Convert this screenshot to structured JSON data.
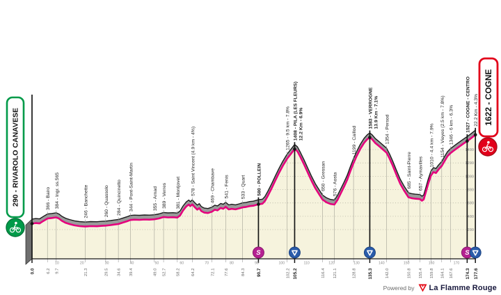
{
  "stage": {
    "start_label": "290 - RIVAROLO CANAVESE",
    "finish_label": "1622 - COGNE",
    "footer": {
      "powered_by": "Powered by",
      "brand_prefix": "La Flamme",
      "brand_suffix": "Rouge"
    }
  },
  "colors": {
    "background": "#ffffff",
    "chart_fill": "#f6f3dd",
    "mountain_band": "#9b9b9b",
    "mountain_edge": "#1a1a1a",
    "route_line": "#e5007d",
    "grid_dots": "#b3b2a2",
    "start_accent": "#009a49",
    "finish_accent": "#e2001a",
    "sprint_icon_bg": "#b52191",
    "kom_icon_bg": "#2a5caa",
    "axis_text": "#8a8a8a",
    "label_text": "#222222"
  },
  "chart_data": {
    "type": "area",
    "title": "",
    "xlabel": "",
    "ylabel": "",
    "x_range_km": [
      0,
      177.6
    ],
    "x_axis_ticks": [
      10,
      20,
      30,
      40,
      50,
      60,
      70,
      80,
      90,
      100,
      110,
      120,
      130,
      140,
      150,
      160,
      170
    ],
    "y_axis_ticks_m": [
      200,
      400,
      600,
      800,
      1000,
      1200,
      1400
    ],
    "grid": "dotted-horizontal",
    "waypoints": [
      {
        "km": 0.0,
        "km_label": "0.0",
        "elev": 290,
        "lines": [],
        "bold": true,
        "dot": true
      },
      {
        "km": 6.2,
        "km_label": "6.2",
        "elev": 366,
        "lines": [
          "366 - Bairo"
        ]
      },
      {
        "km": 9.7,
        "km_label": "9.7",
        "elev": 384,
        "lines": [
          "384 - Ingr. ss.565"
        ]
      },
      {
        "km": 21.3,
        "km_label": "21.3",
        "elev": 246,
        "lines": [
          "246 - Banchette"
        ]
      },
      {
        "km": 29.5,
        "km_label": "29.5",
        "elev": 260,
        "lines": [
          "260 - Quassolo"
        ]
      },
      {
        "km": 34.6,
        "km_label": "34.6",
        "elev": 284,
        "lines": [
          "284 - Quincinetto"
        ]
      },
      {
        "km": 39.4,
        "km_label": "39.4",
        "elev": 344,
        "lines": [
          "344 - Pont-Saint-Martin"
        ]
      },
      {
        "km": 49.0,
        "km_label": "49.0",
        "elev": 355,
        "lines": [
          "355 - Arnad"
        ]
      },
      {
        "km": 52.7,
        "km_label": "52.7",
        "elev": 389,
        "lines": [
          "389 - Verres"
        ]
      },
      {
        "km": 58.2,
        "km_label": "58.2",
        "elev": 381,
        "lines": [
          "381 - Montjovet"
        ]
      },
      {
        "km": 64.2,
        "km_label": "64.2",
        "elev": 578,
        "lines": [
          "578 - Saint Vincent (4.9 km - 4%)"
        ]
      },
      {
        "km": 72.1,
        "km_label": "72.1",
        "elev": 469,
        "lines": [
          "469 - Chambave"
        ]
      },
      {
        "km": 77.6,
        "km_label": "77.6",
        "elev": 541,
        "lines": [
          "541 - Fenis"
        ]
      },
      {
        "km": 84.3,
        "km_label": "84.3",
        "elev": 533,
        "lines": [
          "533 - Quart"
        ]
      },
      {
        "km": 90.7,
        "km_label": "90.7",
        "elev": 580,
        "lines": [
          "580 - POLLEIN"
        ],
        "bold": true,
        "lines_bold": true,
        "icon": "sprint",
        "dot": true
      },
      {
        "km": 102.2,
        "km_label": "102.2",
        "elev": 1265,
        "lines": [
          "1265 - 9.5 km - 7.8%"
        ]
      },
      {
        "km": 105.2,
        "km_label": "105.2",
        "elev": 1408,
        "lines": [
          "1408 - PILA (LES FLEURS)",
          "12.2 Km - 6.9%"
        ],
        "bold": true,
        "lines_bold": true,
        "icon": "kom",
        "dot": true
      },
      {
        "km": 116.4,
        "km_label": "116.4",
        "elev": 650,
        "lines": [
          "650 - Gressan"
        ]
      },
      {
        "km": 121.1,
        "km_label": "121.1",
        "elev": 576,
        "lines": [
          "576 - Aosta"
        ]
      },
      {
        "km": 128.8,
        "km_label": "128.8",
        "elev": 1199,
        "lines": [
          "1199 - Caillod"
        ]
      },
      {
        "km": 135.3,
        "km_label": "135.3",
        "elev": 1583,
        "lines": [
          "1583 - VERROGNE",
          "13.9 Km - 7.1%"
        ],
        "bold": true,
        "lines_bold": true,
        "icon": "kom",
        "dot": true
      },
      {
        "km": 142.0,
        "km_label": "142.0",
        "elev": 1354,
        "lines": [
          "1354 - Persod"
        ]
      },
      {
        "km": 150.8,
        "km_label": "150.8",
        "elev": 685,
        "lines": [
          "685 - Saint-Pierre"
        ]
      },
      {
        "km": 155.4,
        "km_label": "155.4",
        "elev": 657,
        "lines": [
          "657 - Aymavilles"
        ]
      },
      {
        "km": 159.8,
        "km_label": "159.8",
        "elev": 1010,
        "lines": [
          "1010 - 4.4 km - 7.9%"
        ]
      },
      {
        "km": 164.1,
        "km_label": "164.1",
        "elev": 1154,
        "lines": [
          "1154 - Vieyes (2.5 km - 7.8%)"
        ]
      },
      {
        "km": 167.6,
        "km_label": "167.6",
        "elev": 1346,
        "lines": [
          "1346 - 6 km - 6.3%"
        ]
      },
      {
        "km": 174.3,
        "km_label": "174.3",
        "elev": 1527,
        "lines": [
          "1527 - COGNE - CENTRO"
        ],
        "bold": true,
        "lines_bold": true,
        "icon": "sprint",
        "dot": true
      },
      {
        "km": 177.6,
        "km_label": "177.6",
        "elev": 1622,
        "lines": [
          "22.2 Km - 4.3%"
        ],
        "bold": true,
        "lines_bold": false,
        "icon": "kom",
        "dot": true
      }
    ],
    "profile_points": [
      [
        0,
        290
      ],
      [
        1.5,
        298
      ],
      [
        3,
        293
      ],
      [
        4.5,
        328
      ],
      [
        6.2,
        366
      ],
      [
        8,
        374
      ],
      [
        9.7,
        384
      ],
      [
        10.8,
        366
      ],
      [
        12,
        330
      ],
      [
        13.5,
        301
      ],
      [
        15,
        284
      ],
      [
        17,
        264
      ],
      [
        19,
        252
      ],
      [
        21.3,
        246
      ],
      [
        23.5,
        252
      ],
      [
        26,
        250
      ],
      [
        28,
        256
      ],
      [
        29.5,
        260
      ],
      [
        31.5,
        268
      ],
      [
        33,
        276
      ],
      [
        34.6,
        284
      ],
      [
        36.5,
        306
      ],
      [
        38,
        324
      ],
      [
        39.4,
        344
      ],
      [
        41,
        349
      ],
      [
        43,
        346
      ],
      [
        45,
        351
      ],
      [
        47,
        349
      ],
      [
        49,
        355
      ],
      [
        50.8,
        367
      ],
      [
        52.7,
        389
      ],
      [
        54.5,
        383
      ],
      [
        56.5,
        386
      ],
      [
        58.2,
        381
      ],
      [
        59.3,
        412
      ],
      [
        60.5,
        487
      ],
      [
        61.8,
        548
      ],
      [
        62.8,
        576
      ],
      [
        63.4,
        552
      ],
      [
        64.2,
        578
      ],
      [
        65.2,
        536
      ],
      [
        66.2,
        500
      ],
      [
        67,
        521
      ],
      [
        67.8,
        478
      ],
      [
        69,
        455
      ],
      [
        70.5,
        448
      ],
      [
        72.1,
        469
      ],
      [
        73.2,
        498
      ],
      [
        74.3,
        488
      ],
      [
        75.6,
        525
      ],
      [
        76.6,
        512
      ],
      [
        77.6,
        541
      ],
      [
        78.8,
        503
      ],
      [
        80,
        512
      ],
      [
        81.5,
        504
      ],
      [
        83,
        518
      ],
      [
        84.3,
        533
      ],
      [
        85.8,
        540
      ],
      [
        87.2,
        553
      ],
      [
        88.6,
        558
      ],
      [
        90.7,
        580
      ],
      [
        92.3,
        588
      ],
      [
        93.3,
        628
      ],
      [
        94.5,
        710
      ],
      [
        96,
        820
      ],
      [
        97.5,
        940
      ],
      [
        99,
        1055
      ],
      [
        100.5,
        1160
      ],
      [
        102.2,
        1265
      ],
      [
        103.7,
        1336
      ],
      [
        105.2,
        1408
      ],
      [
        106.3,
        1375
      ],
      [
        107.5,
        1290
      ],
      [
        109,
        1175
      ],
      [
        110.5,
        1050
      ],
      [
        112,
        930
      ],
      [
        113.5,
        820
      ],
      [
        115,
        730
      ],
      [
        116.4,
        650
      ],
      [
        118,
        608
      ],
      [
        119.5,
        585
      ],
      [
        121.1,
        576
      ],
      [
        122.3,
        640
      ],
      [
        123.6,
        740
      ],
      [
        125,
        845
      ],
      [
        126.3,
        950
      ],
      [
        127.5,
        1075
      ],
      [
        128.8,
        1199
      ],
      [
        130,
        1300
      ],
      [
        131.5,
        1410
      ],
      [
        133,
        1500
      ],
      [
        134.3,
        1555
      ],
      [
        135.3,
        1583
      ],
      [
        136.3,
        1552
      ],
      [
        137.5,
        1498
      ],
      [
        138.8,
        1458
      ],
      [
        140,
        1420
      ],
      [
        141,
        1386
      ],
      [
        142,
        1354
      ],
      [
        143.2,
        1268
      ],
      [
        144.5,
        1160
      ],
      [
        146,
        1020
      ],
      [
        147.5,
        888
      ],
      [
        149,
        788
      ],
      [
        150.8,
        685
      ],
      [
        152,
        672
      ],
      [
        153.5,
        663
      ],
      [
        155.4,
        657
      ],
      [
        156.2,
        633
      ],
      [
        156.9,
        652
      ],
      [
        157.7,
        755
      ],
      [
        158.7,
        888
      ],
      [
        159.8,
        1010
      ],
      [
        160.8,
        1062
      ],
      [
        161.8,
        1048
      ],
      [
        162.8,
        1100
      ],
      [
        164.1,
        1154
      ],
      [
        165.2,
        1224
      ],
      [
        166.4,
        1300
      ],
      [
        167.6,
        1346
      ],
      [
        168.8,
        1380
      ],
      [
        170,
        1414
      ],
      [
        171.5,
        1454
      ],
      [
        172.8,
        1490
      ],
      [
        174.3,
        1527
      ],
      [
        175.4,
        1558
      ],
      [
        176.5,
        1590
      ],
      [
        177.6,
        1622
      ]
    ]
  }
}
